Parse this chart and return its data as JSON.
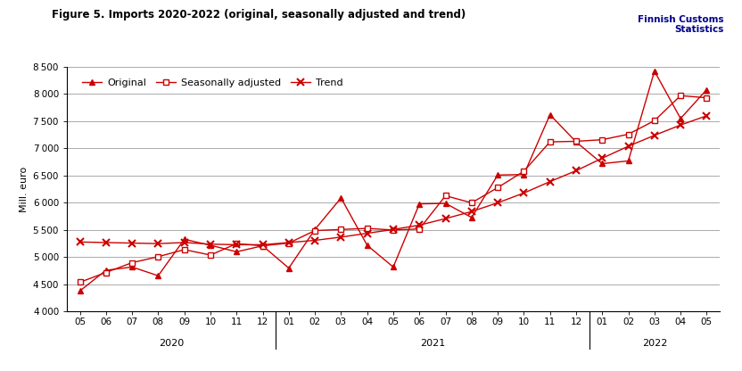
{
  "title": "Figure 5. Imports 2020-2022 (original, seasonally adjusted and trend)",
  "watermark": "Finnish Customs\nStatistics",
  "ylabel": "Mill. euro",
  "ylim": [
    4000,
    8500
  ],
  "yticks": [
    4000,
    4500,
    5000,
    5500,
    6000,
    6500,
    7000,
    7500,
    8000,
    8500
  ],
  "x_labels": [
    "05",
    "06",
    "07",
    "08",
    "09",
    "10",
    "11",
    "12",
    "01",
    "02",
    "03",
    "04",
    "05",
    "06",
    "07",
    "08",
    "09",
    "10",
    "11",
    "12",
    "01",
    "02",
    "03",
    "04",
    "05"
  ],
  "year_labels": [
    {
      "label": "2020",
      "start": 0,
      "end": 7
    },
    {
      "label": "2021",
      "start": 8,
      "end": 19
    },
    {
      "label": "2022",
      "start": 20,
      "end": 24
    }
  ],
  "year_dividers": [
    7.5,
    19.5
  ],
  "original": [
    4380,
    4760,
    4820,
    4660,
    5330,
    5220,
    5100,
    5210,
    4800,
    5510,
    6090,
    5220,
    4820,
    5980,
    5990,
    5730,
    6510,
    6520,
    7620,
    7120,
    6720,
    6770,
    8420,
    7550,
    8080
  ],
  "seasonally_adjusted": [
    4540,
    4720,
    4900,
    5010,
    5140,
    5040,
    5250,
    5210,
    5260,
    5490,
    5510,
    5530,
    5500,
    5520,
    6130,
    6000,
    6280,
    6580,
    7120,
    7130,
    7160,
    7260,
    7510,
    7970,
    7930
  ],
  "trend": [
    5280,
    5270,
    5260,
    5250,
    5270,
    5240,
    5230,
    5230,
    5270,
    5310,
    5370,
    5440,
    5510,
    5590,
    5710,
    5840,
    6000,
    6180,
    6390,
    6590,
    6820,
    7040,
    7240,
    7430,
    7600
  ],
  "line_color": "#CC0000",
  "bg_color": "#FFFFFF",
  "grid_color": "#888888",
  "watermark_color": "#00008B",
  "title_fontsize": 8.5,
  "axis_fontsize": 8,
  "legend_fontsize": 8,
  "tick_fontsize": 7.5
}
